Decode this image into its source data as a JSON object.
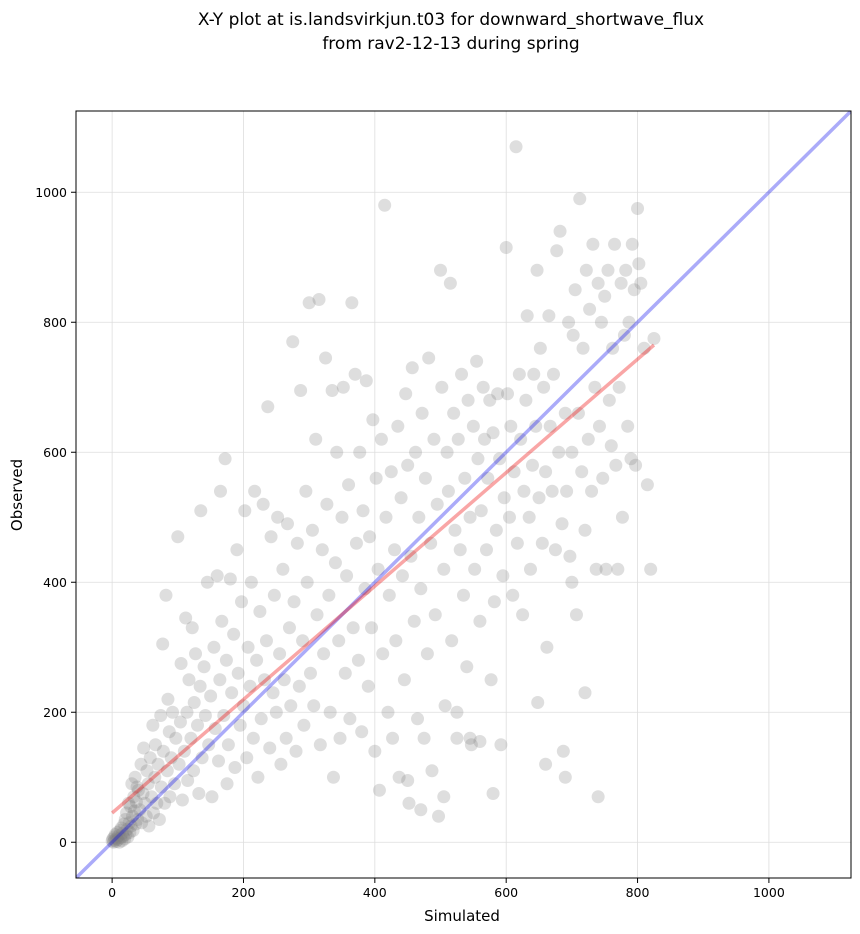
{
  "chart_data": {
    "type": "scatter",
    "title_line1": "X-Y plot at is.landsvirkjun.t03 for downward_shortwave_flux",
    "title_line2": "from rav2-12-13 during spring",
    "xlabel": "Simulated",
    "ylabel": "Observed",
    "xlim": [
      -55,
      1125
    ],
    "ylim": [
      -55,
      1125
    ],
    "xticks": [
      0,
      200,
      400,
      600,
      800,
      1000
    ],
    "yticks": [
      0,
      200,
      400,
      600,
      800,
      1000
    ],
    "grid": true,
    "point_color": "#808080",
    "identity_line_color": "#0000ee",
    "fit_line_color": "#ee0000",
    "fit_line": {
      "x": [
        0,
        825
      ],
      "y": [
        45,
        765
      ]
    },
    "identity_line": {
      "x": [
        -55,
        1125
      ],
      "y": [
        -55,
        1125
      ]
    },
    "points": [
      [
        0,
        2
      ],
      [
        1,
        5
      ],
      [
        2,
        0
      ],
      [
        3,
        8
      ],
      [
        4,
        3
      ],
      [
        5,
        12
      ],
      [
        6,
        1
      ],
      [
        7,
        6
      ],
      [
        8,
        15
      ],
      [
        9,
        4
      ],
      [
        10,
        10
      ],
      [
        11,
        0
      ],
      [
        12,
        18
      ],
      [
        13,
        7
      ],
      [
        14,
        22
      ],
      [
        15,
        2
      ],
      [
        16,
        14
      ],
      [
        17,
        9
      ],
      [
        18,
        28
      ],
      [
        19,
        5
      ],
      [
        20,
        35
      ],
      [
        21,
        12
      ],
      [
        22,
        45
      ],
      [
        23,
        20
      ],
      [
        24,
        8
      ],
      [
        25,
        60
      ],
      [
        26,
        30
      ],
      [
        27,
        15
      ],
      [
        28,
        55
      ],
      [
        29,
        25
      ],
      [
        30,
        90
      ],
      [
        31,
        40
      ],
      [
        32,
        18
      ],
      [
        33,
        70
      ],
      [
        34,
        48
      ],
      [
        35,
        100
      ],
      [
        36,
        28
      ],
      [
        37,
        62
      ],
      [
        38,
        85
      ],
      [
        39,
        35
      ],
      [
        40,
        80
      ],
      [
        42,
        50
      ],
      [
        44,
        120
      ],
      [
        45,
        30
      ],
      [
        47,
        75
      ],
      [
        48,
        145
      ],
      [
        50,
        60
      ],
      [
        52,
        40
      ],
      [
        53,
        110
      ],
      [
        55,
        90
      ],
      [
        56,
        25
      ],
      [
        58,
        130
      ],
      [
        60,
        70
      ],
      [
        62,
        180
      ],
      [
        63,
        45
      ],
      [
        65,
        100
      ],
      [
        66,
        150
      ],
      [
        68,
        60
      ],
      [
        70,
        120
      ],
      [
        72,
        35
      ],
      [
        74,
        195
      ],
      [
        75,
        85
      ],
      [
        77,
        305
      ],
      [
        78,
        140
      ],
      [
        80,
        60
      ],
      [
        82,
        380
      ],
      [
        84,
        110
      ],
      [
        85,
        220
      ],
      [
        87,
        170
      ],
      [
        88,
        70
      ],
      [
        90,
        130
      ],
      [
        92,
        200
      ],
      [
        95,
        90
      ],
      [
        97,
        160
      ],
      [
        100,
        470
      ],
      [
        102,
        120
      ],
      [
        104,
        185
      ],
      [
        105,
        275
      ],
      [
        107,
        65
      ],
      [
        110,
        140
      ],
      [
        112,
        345
      ],
      [
        114,
        200
      ],
      [
        115,
        95
      ],
      [
        117,
        250
      ],
      [
        120,
        160
      ],
      [
        122,
        330
      ],
      [
        124,
        110
      ],
      [
        125,
        215
      ],
      [
        127,
        290
      ],
      [
        130,
        180
      ],
      [
        132,
        75
      ],
      [
        134,
        240
      ],
      [
        135,
        510
      ],
      [
        137,
        130
      ],
      [
        140,
        270
      ],
      [
        142,
        195
      ],
      [
        145,
        400
      ],
      [
        147,
        150
      ],
      [
        150,
        225
      ],
      [
        152,
        70
      ],
      [
        155,
        300
      ],
      [
        157,
        175
      ],
      [
        160,
        410
      ],
      [
        162,
        125
      ],
      [
        164,
        250
      ],
      [
        165,
        540
      ],
      [
        167,
        340
      ],
      [
        170,
        195
      ],
      [
        172,
        590
      ],
      [
        174,
        280
      ],
      [
        175,
        90
      ],
      [
        177,
        150
      ],
      [
        180,
        405
      ],
      [
        182,
        230
      ],
      [
        185,
        320
      ],
      [
        187,
        115
      ],
      [
        190,
        450
      ],
      [
        192,
        260
      ],
      [
        195,
        180
      ],
      [
        197,
        370
      ],
      [
        200,
        210
      ],
      [
        202,
        510
      ],
      [
        205,
        130
      ],
      [
        207,
        300
      ],
      [
        210,
        240
      ],
      [
        212,
        400
      ],
      [
        215,
        160
      ],
      [
        217,
        540
      ],
      [
        220,
        280
      ],
      [
        222,
        100
      ],
      [
        225,
        355
      ],
      [
        227,
        190
      ],
      [
        230,
        520
      ],
      [
        232,
        250
      ],
      [
        235,
        310
      ],
      [
        237,
        670
      ],
      [
        240,
        145
      ],
      [
        242,
        470
      ],
      [
        245,
        230
      ],
      [
        247,
        380
      ],
      [
        250,
        200
      ],
      [
        252,
        500
      ],
      [
        255,
        290
      ],
      [
        257,
        120
      ],
      [
        260,
        420
      ],
      [
        262,
        250
      ],
      [
        265,
        160
      ],
      [
        267,
        490
      ],
      [
        270,
        330
      ],
      [
        272,
        210
      ],
      [
        275,
        770
      ],
      [
        277,
        370
      ],
      [
        280,
        140
      ],
      [
        282,
        460
      ],
      [
        285,
        240
      ],
      [
        287,
        695
      ],
      [
        290,
        310
      ],
      [
        292,
        180
      ],
      [
        295,
        540
      ],
      [
        297,
        400
      ],
      [
        300,
        830
      ],
      [
        302,
        260
      ],
      [
        305,
        480
      ],
      [
        307,
        210
      ],
      [
        310,
        620
      ],
      [
        312,
        350
      ],
      [
        315,
        835
      ],
      [
        317,
        150
      ],
      [
        320,
        450
      ],
      [
        322,
        290
      ],
      [
        325,
        745
      ],
      [
        327,
        520
      ],
      [
        330,
        380
      ],
      [
        332,
        200
      ],
      [
        335,
        695
      ],
      [
        337,
        100
      ],
      [
        340,
        430
      ],
      [
        342,
        600
      ],
      [
        345,
        310
      ],
      [
        347,
        160
      ],
      [
        350,
        500
      ],
      [
        352,
        700
      ],
      [
        355,
        260
      ],
      [
        357,
        410
      ],
      [
        360,
        550
      ],
      [
        362,
        190
      ],
      [
        365,
        830
      ],
      [
        367,
        330
      ],
      [
        370,
        720
      ],
      [
        372,
        460
      ],
      [
        375,
        280
      ],
      [
        377,
        600
      ],
      [
        380,
        170
      ],
      [
        382,
        510
      ],
      [
        385,
        390
      ],
      [
        387,
        710
      ],
      [
        390,
        240
      ],
      [
        392,
        470
      ],
      [
        395,
        330
      ],
      [
        397,
        650
      ],
      [
        400,
        140
      ],
      [
        402,
        560
      ],
      [
        405,
        420
      ],
      [
        407,
        80
      ],
      [
        410,
        620
      ],
      [
        412,
        290
      ],
      [
        415,
        980
      ],
      [
        417,
        500
      ],
      [
        420,
        200
      ],
      [
        422,
        380
      ],
      [
        425,
        570
      ],
      [
        427,
        160
      ],
      [
        430,
        450
      ],
      [
        432,
        310
      ],
      [
        435,
        640
      ],
      [
        437,
        100
      ],
      [
        440,
        530
      ],
      [
        442,
        410
      ],
      [
        445,
        250
      ],
      [
        447,
        690
      ],
      [
        450,
        580
      ],
      [
        452,
        60
      ],
      [
        455,
        440
      ],
      [
        457,
        730
      ],
      [
        460,
        340
      ],
      [
        462,
        600
      ],
      [
        465,
        190
      ],
      [
        467,
        500
      ],
      [
        470,
        390
      ],
      [
        472,
        660
      ],
      [
        475,
        160
      ],
      [
        477,
        560
      ],
      [
        480,
        290
      ],
      [
        482,
        745
      ],
      [
        485,
        460
      ],
      [
        487,
        110
      ],
      [
        490,
        620
      ],
      [
        492,
        350
      ],
      [
        495,
        520
      ],
      [
        497,
        40
      ],
      [
        500,
        880
      ],
      [
        502,
        700
      ],
      [
        505,
        420
      ],
      [
        507,
        210
      ],
      [
        510,
        600
      ],
      [
        512,
        540
      ],
      [
        515,
        860
      ],
      [
        517,
        310
      ],
      [
        520,
        660
      ],
      [
        522,
        480
      ],
      [
        525,
        160
      ],
      [
        527,
        620
      ],
      [
        530,
        450
      ],
      [
        532,
        720
      ],
      [
        535,
        380
      ],
      [
        537,
        560
      ],
      [
        540,
        270
      ],
      [
        542,
        680
      ],
      [
        545,
        500
      ],
      [
        547,
        150
      ],
      [
        550,
        640
      ],
      [
        552,
        420
      ],
      [
        555,
        740
      ],
      [
        557,
        590
      ],
      [
        560,
        340
      ],
      [
        562,
        510
      ],
      [
        565,
        700
      ],
      [
        567,
        620
      ],
      [
        570,
        450
      ],
      [
        572,
        560
      ],
      [
        575,
        680
      ],
      [
        577,
        250
      ],
      [
        580,
        630
      ],
      [
        582,
        370
      ],
      [
        585,
        480
      ],
      [
        587,
        690
      ],
      [
        590,
        590
      ],
      [
        592,
        150
      ],
      [
        595,
        410
      ],
      [
        597,
        530
      ],
      [
        600,
        915
      ],
      [
        602,
        690
      ],
      [
        605,
        500
      ],
      [
        607,
        640
      ],
      [
        610,
        380
      ],
      [
        612,
        570
      ],
      [
        615,
        1070
      ],
      [
        617,
        460
      ],
      [
        620,
        720
      ],
      [
        622,
        620
      ],
      [
        625,
        350
      ],
      [
        627,
        540
      ],
      [
        630,
        680
      ],
      [
        632,
        810
      ],
      [
        635,
        500
      ],
      [
        637,
        420
      ],
      [
        640,
        580
      ],
      [
        642,
        720
      ],
      [
        645,
        640
      ],
      [
        647,
        880
      ],
      [
        650,
        530
      ],
      [
        652,
        760
      ],
      [
        655,
        460
      ],
      [
        657,
        700
      ],
      [
        660,
        570
      ],
      [
        662,
        300
      ],
      [
        665,
        810
      ],
      [
        667,
        640
      ],
      [
        670,
        540
      ],
      [
        672,
        720
      ],
      [
        675,
        450
      ],
      [
        677,
        910
      ],
      [
        680,
        600
      ],
      [
        682,
        940
      ],
      [
        685,
        490
      ],
      [
        687,
        140
      ],
      [
        690,
        660
      ],
      [
        692,
        540
      ],
      [
        695,
        800
      ],
      [
        697,
        440
      ],
      [
        700,
        600
      ],
      [
        702,
        780
      ],
      [
        705,
        850
      ],
      [
        707,
        350
      ],
      [
        710,
        660
      ],
      [
        712,
        990
      ],
      [
        715,
        570
      ],
      [
        717,
        760
      ],
      [
        720,
        480
      ],
      [
        722,
        880
      ],
      [
        725,
        620
      ],
      [
        727,
        820
      ],
      [
        730,
        540
      ],
      [
        732,
        920
      ],
      [
        735,
        700
      ],
      [
        737,
        420
      ],
      [
        740,
        860
      ],
      [
        742,
        640
      ],
      [
        745,
        800
      ],
      [
        747,
        560
      ],
      [
        750,
        840
      ],
      [
        752,
        420
      ],
      [
        755,
        880
      ],
      [
        757,
        680
      ],
      [
        760,
        610
      ],
      [
        762,
        760
      ],
      [
        765,
        920
      ],
      [
        767,
        580
      ],
      [
        770,
        420
      ],
      [
        772,
        700
      ],
      [
        775,
        860
      ],
      [
        777,
        500
      ],
      [
        780,
        780
      ],
      [
        782,
        880
      ],
      [
        785,
        640
      ],
      [
        787,
        800
      ],
      [
        790,
        590
      ],
      [
        792,
        920
      ],
      [
        795,
        850
      ],
      [
        797,
        580
      ],
      [
        800,
        975
      ],
      [
        802,
        890
      ],
      [
        805,
        860
      ],
      [
        810,
        760
      ],
      [
        815,
        550
      ],
      [
        820,
        420
      ],
      [
        825,
        775
      ],
      [
        740,
        70
      ],
      [
        720,
        230
      ],
      [
        700,
        400
      ],
      [
        690,
        100
      ],
      [
        660,
        120
      ],
      [
        648,
        215
      ],
      [
        580,
        75
      ],
      [
        560,
        155
      ],
      [
        545,
        160
      ],
      [
        525,
        200
      ],
      [
        505,
        70
      ],
      [
        470,
        50
      ],
      [
        450,
        95
      ]
    ]
  }
}
